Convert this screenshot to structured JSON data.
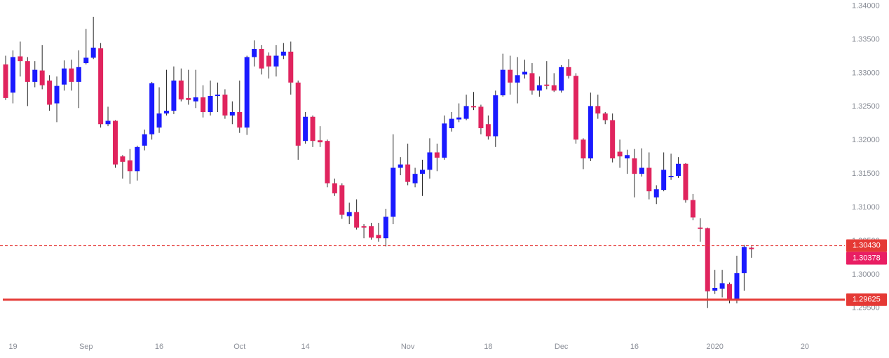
{
  "chart_data": {
    "type": "candlestick",
    "up_color": "#1a1aff",
    "down_color": "#e0245e",
    "wick_color": "#2a2a2a",
    "open": [
      1.3313,
      1.3271,
      1.3325,
      1.3318,
      1.3287,
      1.3304,
      1.3289,
      1.3255,
      1.3283,
      1.3307,
      1.3287,
      1.3315,
      1.3323,
      1.3337,
      1.3224,
      1.3229,
      1.3176,
      1.317,
      1.3154,
      1.3192,
      1.3209,
      1.3219,
      1.324,
      1.3244,
      1.3289,
      1.3263,
      1.3258,
      1.3264,
      1.3242,
      1.3266,
      1.3268,
      1.3237,
      1.3242,
      1.3219,
      1.3324,
      1.3336,
      1.3326,
      1.331,
      1.3326,
      1.3332,
      1.3286,
      1.3199,
      1.3235,
      1.32,
      1.3199,
      1.3136,
      1.3133,
      1.3087,
      1.3093,
      1.3072,
      1.3072,
      1.3059,
      1.3054,
      1.3086,
      1.3159,
      1.3164,
      1.3136,
      1.315,
      1.3156,
      1.3182,
      1.3174,
      1.3218,
      1.3231,
      1.3232,
      1.3251,
      1.325,
      1.3224,
      1.3206,
      1.3267,
      1.3305,
      1.3286,
      1.3298,
      1.33,
      1.3274,
      1.3283,
      1.3282,
      1.3274,
      1.3309,
      1.3296,
      1.3201,
      1.3173,
      1.3251,
      1.324,
      1.323,
      1.3183,
      1.3173,
      1.3173,
      1.315,
      1.3159,
      1.3115,
      1.3126,
      1.3145,
      1.3147,
      1.3165,
      1.3111,
      1.307,
      1.3069,
      1.2976,
      1.2979,
      1.2986,
      1.2963,
      1.3002,
      1.304
    ],
    "high": [
      1.3326,
      1.3334,
      1.3347,
      1.3324,
      1.3318,
      1.3342,
      1.3297,
      1.3295,
      1.3319,
      1.332,
      1.3334,
      1.3366,
      1.3384,
      1.3345,
      1.325,
      1.323,
      1.3178,
      1.3187,
      1.3192,
      1.3216,
      1.3287,
      1.3279,
      1.3305,
      1.331,
      1.3307,
      1.3305,
      1.3305,
      1.3282,
      1.3289,
      1.3286,
      1.3276,
      1.3258,
      1.3289,
      1.3326,
      1.3349,
      1.3342,
      1.3331,
      1.3342,
      1.3345,
      1.3347,
      1.3289,
      1.3242,
      1.3237,
      1.3221,
      1.3201,
      1.3143,
      1.3136,
      1.3107,
      1.3112,
      1.3075,
      1.3077,
      1.3077,
      1.3098,
      1.3209,
      1.3175,
      1.3195,
      1.3159,
      1.3171,
      1.3203,
      1.3195,
      1.3237,
      1.3242,
      1.3255,
      1.3268,
      1.3272,
      1.3253,
      1.3237,
      1.3274,
      1.3329,
      1.3326,
      1.3324,
      1.332,
      1.3315,
      1.3295,
      1.3318,
      1.33,
      1.3312,
      1.3321,
      1.33,
      1.3203,
      1.3271,
      1.3268,
      1.3242,
      1.324,
      1.3201,
      1.3186,
      1.3187,
      1.3188,
      1.3182,
      1.3133,
      1.3182,
      1.318,
      1.3175,
      1.3166,
      1.312,
      1.3084,
      1.307,
      1.3007,
      1.3007,
      1.2988,
      1.3028,
      1.3044,
      1.3042
    ],
    "low": [
      1.326,
      1.3255,
      1.3295,
      1.3251,
      1.3279,
      1.3276,
      1.3244,
      1.3227,
      1.3274,
      1.3274,
      1.3248,
      1.3313,
      1.3321,
      1.3219,
      1.3221,
      1.3159,
      1.3143,
      1.3135,
      1.314,
      1.3185,
      1.3201,
      1.3211,
      1.3237,
      1.3239,
      1.3258,
      1.3253,
      1.3248,
      1.3234,
      1.3237,
      1.3242,
      1.3232,
      1.3224,
      1.3211,
      1.3208,
      1.331,
      1.3298,
      1.3292,
      1.3295,
      1.3321,
      1.3268,
      1.3171,
      1.3195,
      1.319,
      1.319,
      1.313,
      1.3117,
      1.3083,
      1.3075,
      1.3067,
      1.3054,
      1.3052,
      1.3049,
      1.3042,
      1.3075,
      1.3148,
      1.3133,
      1.313,
      1.3117,
      1.3143,
      1.3154,
      1.3171,
      1.3213,
      1.3227,
      1.323,
      1.3245,
      1.3209,
      1.3201,
      1.319,
      1.3265,
      1.3268,
      1.3255,
      1.3292,
      1.3268,
      1.3265,
      1.3276,
      1.3272,
      1.3271,
      1.3292,
      1.3195,
      1.3157,
      1.3169,
      1.3232,
      1.3224,
      1.3167,
      1.3159,
      1.315,
      1.3115,
      1.3146,
      1.3112,
      1.3105,
      1.3124,
      1.3141,
      1.3144,
      1.3107,
      1.3081,
      1.3049,
      1.295,
      1.2971,
      1.2966,
      1.2957,
      1.2957,
      1.2976,
      1.3025
    ],
    "close": [
      1.3263,
      1.3324,
      1.3318,
      1.3287,
      1.3305,
      1.3282,
      1.3253,
      1.3281,
      1.3307,
      1.3287,
      1.3309,
      1.3323,
      1.3338,
      1.3224,
      1.3229,
      1.3164,
      1.3168,
      1.3154,
      1.319,
      1.3209,
      1.3285,
      1.324,
      1.3244,
      1.3289,
      1.3261,
      1.326,
      1.3264,
      1.3242,
      1.3266,
      1.3268,
      1.3237,
      1.3242,
      1.3219,
      1.3324,
      1.3336,
      1.3307,
      1.331,
      1.3326,
      1.3332,
      1.3286,
      1.3192,
      1.3235,
      1.3199,
      1.3197,
      1.3136,
      1.3121,
      1.3089,
      1.3093,
      1.307,
      1.307,
      1.3055,
      1.3054,
      1.3086,
      1.3159,
      1.3164,
      1.3138,
      1.315,
      1.3156,
      1.3182,
      1.3174,
      1.3225,
      1.3232,
      1.3234,
      1.3251,
      1.3249,
      1.3218,
      1.3206,
      1.3267,
      1.3305,
      1.3286,
      1.3297,
      1.3302,
      1.3274,
      1.3282,
      1.3281,
      1.3274,
      1.3309,
      1.3296,
      1.3201,
      1.3173,
      1.3251,
      1.324,
      1.323,
      1.3173,
      1.3176,
      1.3178,
      1.315,
      1.3159,
      1.3124,
      1.3127,
      1.3156,
      1.3147,
      1.3165,
      1.3111,
      1.3085,
      1.3068,
      1.2975,
      1.298,
      1.2987,
      1.2963,
      1.3002,
      1.3041,
      1.30378
    ],
    "xlim": [
      -0.77,
      114.77
    ],
    "xticks": [
      {
        "value": 1,
        "label": "19"
      },
      {
        "value": 11,
        "label": "Sep"
      },
      {
        "value": 21,
        "label": "16"
      },
      {
        "value": 32,
        "label": "Oct"
      },
      {
        "value": 41,
        "label": "14"
      },
      {
        "value": 55,
        "label": "Nov"
      },
      {
        "value": 66,
        "label": "18"
      },
      {
        "value": 76,
        "label": "Dec"
      },
      {
        "value": 86,
        "label": "16"
      },
      {
        "value": 97,
        "label": "2020"
      },
      {
        "value": 109.3,
        "label": "20"
      }
    ],
    "ylim": [
      1.2908,
      1.3409
    ],
    "yticks": [
      {
        "value": 1.295,
        "label": "1.29500"
      },
      {
        "value": 1.3,
        "label": "1.30000"
      },
      {
        "value": 1.305,
        "label": "1.30500"
      },
      {
        "value": 1.31,
        "label": "1.31000"
      },
      {
        "value": 1.315,
        "label": "1.31500"
      },
      {
        "value": 1.32,
        "label": "1.32000"
      },
      {
        "value": 1.325,
        "label": "1.32500"
      },
      {
        "value": 1.33,
        "label": "1.33000"
      },
      {
        "value": 1.335,
        "label": "1.33500"
      },
      {
        "value": 1.34,
        "label": "1.34000"
      }
    ],
    "price_lines": [
      {
        "value": 1.3043,
        "label": "1.30430",
        "color": "#e53935",
        "line": "dashed"
      },
      {
        "value": 1.30378,
        "label": "1.30378",
        "color": "#e91e63",
        "line": "none"
      },
      {
        "value": 1.29625,
        "label": "1.29625",
        "color": "#e53935",
        "line": "solid"
      }
    ]
  }
}
